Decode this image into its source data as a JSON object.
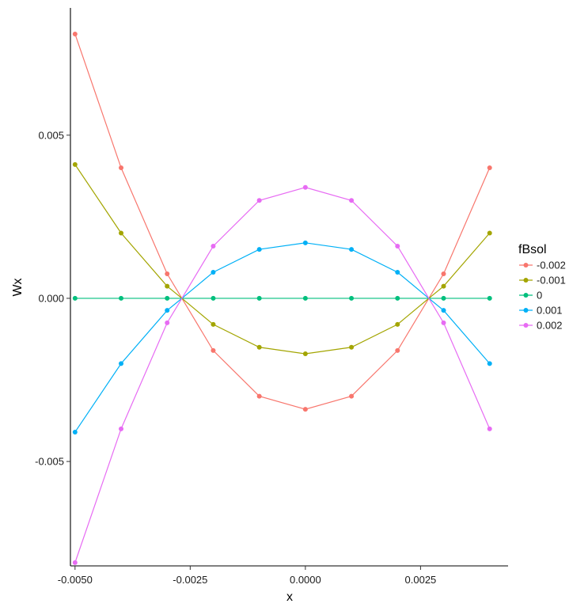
{
  "chart_data": {
    "type": "line",
    "title": "",
    "xlabel": "x",
    "ylabel": "Wx",
    "xlim": [
      -0.0051,
      0.0044
    ],
    "ylim": [
      -0.0082,
      0.0089
    ],
    "x_ticks": [
      -0.005,
      -0.0025,
      0.0,
      0.0025
    ],
    "x_tick_labels": [
      "-0.0050",
      "-0.0025",
      "0.0000",
      "0.0025"
    ],
    "y_ticks": [
      -0.005,
      0.0,
      0.005
    ],
    "y_tick_labels": [
      "-0.005",
      "0.000",
      "0.005"
    ],
    "grid": false,
    "legend": {
      "title": "fBsol",
      "placement": "right"
    },
    "x": [
      -0.005,
      -0.004,
      -0.003,
      -0.002,
      -0.001,
      0.0,
      0.001,
      0.002,
      0.003,
      0.004
    ],
    "series": [
      {
        "name": "-0.002",
        "color": "#F8766D",
        "points": [
          [
            -0.005,
            0.0081
          ],
          [
            -0.004,
            0.004
          ],
          [
            -0.003,
            0.00075
          ],
          [
            -0.00268,
            0.0
          ],
          [
            -0.002,
            -0.0016
          ],
          [
            -0.001,
            -0.003
          ],
          [
            0.0,
            -0.0034
          ],
          [
            0.001,
            -0.003
          ],
          [
            0.002,
            -0.0016
          ],
          [
            0.00268,
            0.0
          ],
          [
            0.003,
            0.00075
          ],
          [
            0.004,
            0.004
          ]
        ]
      },
      {
        "name": "-0.001",
        "color": "#A3A500",
        "points": [
          [
            -0.005,
            0.0041
          ],
          [
            -0.004,
            0.002
          ],
          [
            -0.003,
            0.00037
          ],
          [
            -0.00268,
            0.0
          ],
          [
            -0.002,
            -0.0008
          ],
          [
            -0.001,
            -0.0015
          ],
          [
            0.0,
            -0.0017
          ],
          [
            0.001,
            -0.0015
          ],
          [
            0.002,
            -0.0008
          ],
          [
            0.00268,
            0.0
          ],
          [
            0.003,
            0.00037
          ],
          [
            0.004,
            0.002
          ]
        ]
      },
      {
        "name": "0",
        "color": "#00BF7D",
        "points": [
          [
            -0.005,
            0.0
          ],
          [
            -0.004,
            0.0
          ],
          [
            -0.003,
            0.0
          ],
          [
            -0.00268,
            0.0
          ],
          [
            -0.002,
            0.0
          ],
          [
            -0.001,
            0.0
          ],
          [
            0.0,
            0.0
          ],
          [
            0.001,
            0.0
          ],
          [
            0.002,
            0.0
          ],
          [
            0.00268,
            0.0
          ],
          [
            0.003,
            0.0
          ],
          [
            0.004,
            0.0
          ]
        ]
      },
      {
        "name": "0.001",
        "color": "#00B0F6",
        "points": [
          [
            -0.005,
            -0.0041
          ],
          [
            -0.004,
            -0.002
          ],
          [
            -0.003,
            -0.00037
          ],
          [
            -0.00268,
            0.0
          ],
          [
            -0.002,
            0.0008
          ],
          [
            -0.001,
            0.0015
          ],
          [
            0.0,
            0.0017
          ],
          [
            0.001,
            0.0015
          ],
          [
            0.002,
            0.0008
          ],
          [
            0.00268,
            0.0
          ],
          [
            0.003,
            -0.00037
          ],
          [
            0.004,
            -0.002
          ]
        ]
      },
      {
        "name": "0.002",
        "color": "#E76BF3",
        "points": [
          [
            -0.005,
            -0.0081
          ],
          [
            -0.004,
            -0.004
          ],
          [
            -0.003,
            -0.00075
          ],
          [
            -0.00268,
            0.0
          ],
          [
            -0.002,
            0.0016
          ],
          [
            -0.001,
            0.003
          ],
          [
            0.0,
            0.0034
          ],
          [
            0.001,
            0.003
          ],
          [
            0.002,
            0.0016
          ],
          [
            0.00268,
            0.0
          ],
          [
            0.003,
            -0.00075
          ],
          [
            0.004,
            -0.004
          ]
        ]
      }
    ]
  }
}
